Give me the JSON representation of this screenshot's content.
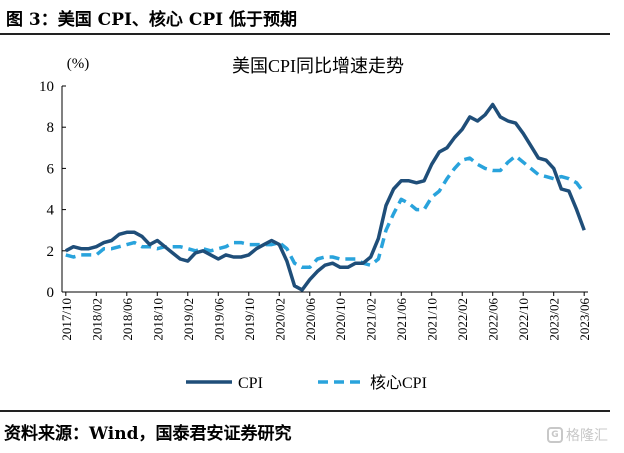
{
  "figure_title": "图 3：美国 CPI、核心 CPI 低于预期",
  "source": "资料来源：Wind，国泰君安证券研究",
  "watermark": {
    "text": "格隆汇",
    "icon": "g-logo-icon"
  },
  "colors": {
    "cpi": "#1f4e79",
    "core": "#29a3dc",
    "axis": "#000000",
    "rule": "#222222"
  },
  "chart_data": {
    "type": "line",
    "title": "美国CPI同比增速走势",
    "ylabel": "(%)",
    "xlabel": "",
    "ylim": [
      0,
      10
    ],
    "yticks": [
      0,
      2,
      4,
      6,
      8,
      10
    ],
    "grid": false,
    "legend_position": "bottom",
    "x": [
      "2017/10",
      "2017/11",
      "2017/12",
      "2018/01",
      "2018/02",
      "2018/03",
      "2018/04",
      "2018/05",
      "2018/06",
      "2018/07",
      "2018/08",
      "2018/09",
      "2018/10",
      "2018/11",
      "2018/12",
      "2019/01",
      "2019/02",
      "2019/03",
      "2019/04",
      "2019/05",
      "2019/06",
      "2019/07",
      "2019/08",
      "2019/09",
      "2019/10",
      "2019/11",
      "2019/12",
      "2020/01",
      "2020/02",
      "2020/03",
      "2020/04",
      "2020/05",
      "2020/06",
      "2020/07",
      "2020/08",
      "2020/09",
      "2020/10",
      "2020/11",
      "2020/12",
      "2021/01",
      "2021/02",
      "2021/03",
      "2021/04",
      "2021/05",
      "2021/06",
      "2021/07",
      "2021/08",
      "2021/09",
      "2021/10",
      "2021/11",
      "2021/12",
      "2022/01",
      "2022/02",
      "2022/03",
      "2022/04",
      "2022/05",
      "2022/06",
      "2022/07",
      "2022/08",
      "2022/09",
      "2022/10",
      "2022/11",
      "2022/12",
      "2023/01",
      "2023/02",
      "2023/03",
      "2023/04",
      "2023/05",
      "2023/06"
    ],
    "xtick_labels": [
      "2017/10",
      "2018/02",
      "2018/06",
      "2018/10",
      "2019/02",
      "2019/06",
      "2019/10",
      "2020/02",
      "2020/06",
      "2020/10",
      "2021/02",
      "2021/06",
      "2021/10",
      "2022/02",
      "2022/06",
      "2022/10",
      "2023/02",
      "2023/06"
    ],
    "series": [
      {
        "name": "CPI",
        "style": "solid",
        "values": [
          2.0,
          2.2,
          2.1,
          2.1,
          2.2,
          2.4,
          2.5,
          2.8,
          2.9,
          2.9,
          2.7,
          2.3,
          2.5,
          2.2,
          1.9,
          1.6,
          1.5,
          1.9,
          2.0,
          1.8,
          1.6,
          1.8,
          1.7,
          1.7,
          1.8,
          2.1,
          2.3,
          2.5,
          2.3,
          1.5,
          0.3,
          0.1,
          0.6,
          1.0,
          1.3,
          1.4,
          1.2,
          1.2,
          1.4,
          1.4,
          1.7,
          2.6,
          4.2,
          5.0,
          5.4,
          5.4,
          5.3,
          5.4,
          6.2,
          6.8,
          7.0,
          7.5,
          7.9,
          8.5,
          8.3,
          8.6,
          9.1,
          8.5,
          8.3,
          8.2,
          7.7,
          7.1,
          6.5,
          6.4,
          6.0,
          5.0,
          4.9,
          4.0,
          3.0
        ]
      },
      {
        "name": "核心CPI",
        "style": "dashed",
        "values": [
          1.8,
          1.7,
          1.8,
          1.8,
          1.8,
          2.1,
          2.1,
          2.2,
          2.3,
          2.4,
          2.2,
          2.2,
          2.1,
          2.2,
          2.2,
          2.2,
          2.1,
          2.0,
          2.1,
          2.0,
          2.1,
          2.2,
          2.4,
          2.4,
          2.3,
          2.3,
          2.3,
          2.3,
          2.4,
          2.1,
          1.4,
          1.2,
          1.2,
          1.6,
          1.7,
          1.7,
          1.6,
          1.6,
          1.6,
          1.4,
          1.3,
          1.6,
          3.0,
          3.8,
          4.5,
          4.3,
          4.0,
          4.0,
          4.6,
          4.9,
          5.5,
          6.0,
          6.4,
          6.5,
          6.2,
          6.0,
          5.9,
          5.9,
          6.3,
          6.6,
          6.3,
          6.0,
          5.7,
          5.6,
          5.5,
          5.6,
          5.5,
          5.3,
          4.8
        ]
      }
    ]
  }
}
